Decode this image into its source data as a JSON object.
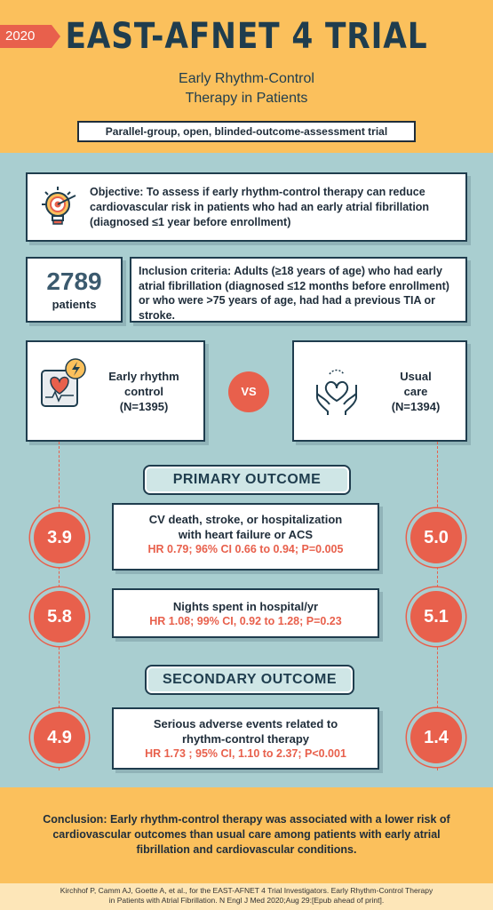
{
  "header": {
    "year": "2020",
    "title": "EAST-AFNET 4 TRIAL",
    "subtitle_line1": "Early Rhythm-Control",
    "subtitle_line2": "Therapy in Patients",
    "design": "Parallel-group, open, blinded-outcome-assessment trial"
  },
  "objective": {
    "text": "Objective: To assess if early rhythm-control therapy can reduce cardiovascular risk in patients who had an early atrial fibrillation (diagnosed ≤1 year before enrollment)",
    "icon": "lightbulb-target-icon"
  },
  "population": {
    "count": "2789",
    "count_label": "patients",
    "inclusion": "Inclusion criteria: Adults (≥18 years of age) who had early atrial fibrillation (diagnosed ≤12 months before enrollment) or who were >75 years of age, had had a previous TIA or stroke."
  },
  "arms": {
    "left": {
      "line1": "Early rhythm",
      "line2": "control",
      "line3": "(N=1395)",
      "icon": "heart-monitor-lightning-icon"
    },
    "vs": "VS",
    "right": {
      "line1": "Usual",
      "line2": "care",
      "line3": "(N=1394)",
      "icon": "hands-heart-icon"
    }
  },
  "primary": {
    "label": "PRIMARY OUTCOME",
    "outcome1": {
      "title_line1": "CV death, stroke, or hospitalization",
      "title_line2": "with heart failure or ACS",
      "stats": "HR 0.79; 96% CI 0.66 to 0.94; P=0.005",
      "left_value": "3.9",
      "right_value": "5.0"
    },
    "outcome2": {
      "title_line1": "Nights spent in hospital/yr",
      "stats": "HR 1.08; 99% CI, 0.92 to 1.28; P=0.23",
      "left_value": "5.8",
      "right_value": "5.1"
    }
  },
  "secondary": {
    "label": "SECONDARY OUTCOME",
    "outcome1": {
      "title_line1": "Serious adverse events related to",
      "title_line2": "rhythm-control therapy",
      "stats": "HR 1.73 ; 95% CI, 1.10 to 2.37; P<0.001",
      "left_value": "4.9",
      "right_value": "1.4"
    }
  },
  "conclusion": "Conclusion: Early rhythm-control therapy was associated with a lower risk of cardiovascular outcomes than usual care among patients with early atrial fibrillation and cardiovascular conditions.",
  "footer": {
    "line1": "Kirchhof P, Camm AJ, Goette A, et al., for the EAST-AFNET 4 Trial Investigators. Early Rhythm-Control Therapy",
    "line2": "in Patients with Atrial Fibrillation. N Engl J Med 2020;Aug 29:[Epub ahead of print]."
  },
  "colors": {
    "accent": "#e8604c",
    "header_bg": "#fbc05c",
    "body_bg": "#a9ced0",
    "navy": "#1f3d4e"
  }
}
